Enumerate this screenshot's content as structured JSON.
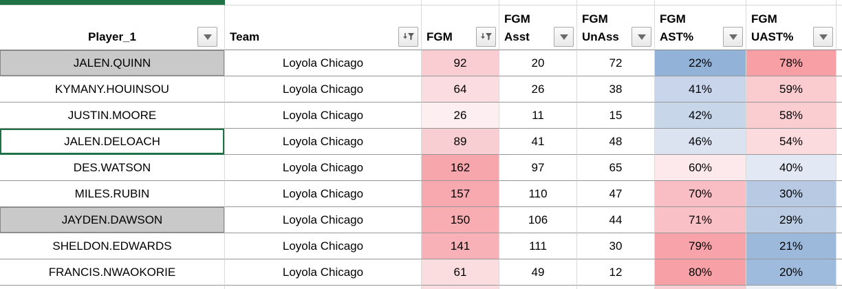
{
  "sheet": {
    "columns": [
      {
        "id": "player",
        "lines": [
          "Player_1"
        ],
        "filter": "dropdown"
      },
      {
        "id": "team",
        "lines": [
          "Team"
        ],
        "filter": "funnel"
      },
      {
        "id": "fgm",
        "lines": [
          "FGM"
        ],
        "filter": "funnel"
      },
      {
        "id": "fgm_asst",
        "lines": [
          "FGM",
          "Asst"
        ],
        "filter": "dropdown"
      },
      {
        "id": "fgm_unass",
        "lines": [
          "FGM",
          "UnAss"
        ],
        "filter": "dropdown"
      },
      {
        "id": "fgm_ast",
        "lines": [
          "FGM",
          "AST%"
        ],
        "filter": "dropdown"
      },
      {
        "id": "fgm_uast",
        "lines": [
          "FGM",
          "UAST%"
        ],
        "filter": "dropdown"
      }
    ],
    "rows": [
      {
        "player": "JALEN.QUINN",
        "team": "Loyola Chicago",
        "fgm": "92",
        "fgm_asst": "20",
        "fgm_unass": "72",
        "ast_pct": "22%",
        "uast_pct": "78%",
        "player_state": "gray",
        "fgm_bg": "#FACDD2",
        "ast_bg": "#93B2D7",
        "uast_bg": "#F79FA5"
      },
      {
        "player": "KYMANY.HOUINSOU",
        "team": "Loyola Chicago",
        "fgm": "64",
        "fgm_asst": "26",
        "fgm_unass": "38",
        "ast_pct": "41%",
        "uast_pct": "59%",
        "player_state": "normal",
        "fgm_bg": "#FBDCE0",
        "ast_bg": "#C8D5EA",
        "uast_bg": "#FACCD0"
      },
      {
        "player": "JUSTIN.MOORE",
        "team": "Loyola Chicago",
        "fgm": "26",
        "fgm_asst": "11",
        "fgm_unass": "15",
        "ast_pct": "42%",
        "uast_pct": "58%",
        "player_state": "normal",
        "fgm_bg": "#FDEFF1",
        "ast_bg": "#C8D6EA",
        "uast_bg": "#FACDD1"
      },
      {
        "player": "JALEN.DELOACH",
        "team": "Loyola Chicago",
        "fgm": "89",
        "fgm_asst": "41",
        "fgm_unass": "48",
        "ast_pct": "46%",
        "uast_pct": "54%",
        "player_state": "active",
        "fgm_bg": "#F9CED3",
        "ast_bg": "#DBE3F1",
        "uast_bg": "#FBDBDE"
      },
      {
        "player": "DES.WATSON",
        "team": "Loyola Chicago",
        "fgm": "162",
        "fgm_asst": "97",
        "fgm_unass": "65",
        "ast_pct": "60%",
        "uast_pct": "40%",
        "player_state": "normal",
        "fgm_bg": "#F7A6AC",
        "ast_bg": "#FDE9EB",
        "uast_bg": "#E3E9F4"
      },
      {
        "player": "MILES.RUBIN",
        "team": "Loyola Chicago",
        "fgm": "157",
        "fgm_asst": "110",
        "fgm_unass": "47",
        "ast_pct": "70%",
        "uast_pct": "30%",
        "player_state": "normal",
        "fgm_bg": "#F7A9AF",
        "ast_bg": "#F9BEC3",
        "uast_bg": "#B7C9E3"
      },
      {
        "player": "JAYDEN.DAWSON",
        "team": "Loyola Chicago",
        "fgm": "150",
        "fgm_asst": "106",
        "fgm_unass": "44",
        "ast_pct": "71%",
        "uast_pct": "29%",
        "player_state": "gray",
        "fgm_bg": "#F8ADB2",
        "ast_bg": "#F9C0C5",
        "uast_bg": "#BACCE4"
      },
      {
        "player": "SHELDON.EDWARDS",
        "team": "Loyola Chicago",
        "fgm": "141",
        "fgm_asst": "111",
        "fgm_unass": "30",
        "ast_pct": "79%",
        "uast_pct": "21%",
        "player_state": "normal",
        "fgm_bg": "#F8B2B7",
        "ast_bg": "#F7A3A9",
        "uast_bg": "#9CB9DB"
      },
      {
        "player": "FRANCIS.NWAOKORIE",
        "team": "Loyola Chicago",
        "fgm": "61",
        "fgm_asst": "49",
        "fgm_unass": "12",
        "ast_pct": "80%",
        "uast_pct": "20%",
        "player_state": "normal",
        "fgm_bg": "#FBDDE0",
        "ast_bg": "#F7A1A7",
        "uast_bg": "#9EBADC"
      }
    ],
    "partial_row_bg": {
      "fgm": "#FBDCE0",
      "ast": "#F9CED3",
      "uast": "#ECF1F8"
    },
    "colors": {
      "accent_green": "#217346",
      "active_cell_border": "#1E7145",
      "gray_cell_fill": "#C9C9C9",
      "scale_red_strong": "#F7A1A7",
      "scale_blue_strong": "#93B2D7"
    }
  }
}
